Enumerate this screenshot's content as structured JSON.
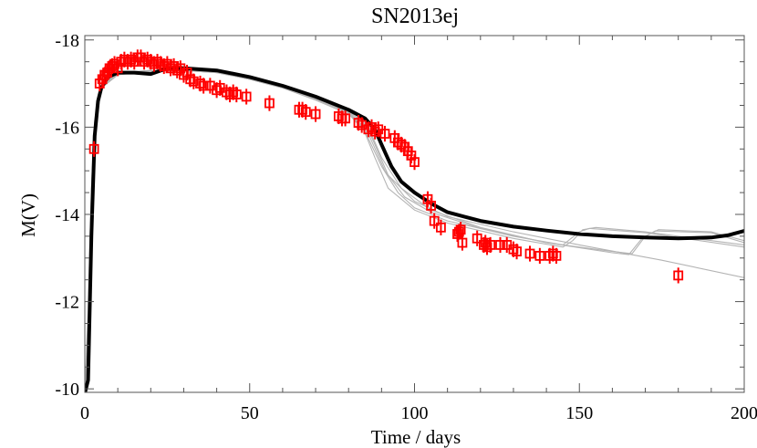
{
  "chart_data": {
    "type": "scatter",
    "title": "SN2013ej",
    "xlabel": "Time / days",
    "ylabel": "M(V)",
    "xlim": [
      0,
      200
    ],
    "ylim": [
      -9.92,
      -18.1
    ],
    "y_inverted": true,
    "grid": false,
    "x_ticks": [
      0,
      50,
      100,
      150,
      200
    ],
    "x_tick_labels": [
      "0",
      "50",
      "100",
      "150",
      "200"
    ],
    "x_minor_step": 10,
    "y_ticks": [
      -10,
      -12,
      -14,
      -16,
      -18
    ],
    "y_tick_labels": [
      "-10",
      "-12",
      "-14",
      "-16",
      "-18"
    ],
    "y_minor_step": 0.5,
    "colors": {
      "observed": "#ff0000",
      "best_model": "#000000",
      "models": "#b4b4b4"
    },
    "observed": {
      "marker": "open-square",
      "error": 0.18,
      "points": [
        [
          2.8,
          -15.5
        ],
        [
          4.5,
          -17.0
        ],
        [
          5.3,
          -17.1
        ],
        [
          6,
          -17.2
        ],
        [
          6.8,
          -17.25
        ],
        [
          7.5,
          -17.35
        ],
        [
          8.3,
          -17.4
        ],
        [
          9,
          -17.45
        ],
        [
          10,
          -17.35
        ],
        [
          11,
          -17.5
        ],
        [
          12,
          -17.55
        ],
        [
          13,
          -17.5
        ],
        [
          14,
          -17.55
        ],
        [
          15,
          -17.5
        ],
        [
          16,
          -17.6
        ],
        [
          17,
          -17.6
        ],
        [
          18,
          -17.5
        ],
        [
          19,
          -17.55
        ],
        [
          20,
          -17.5
        ],
        [
          21,
          -17.45
        ],
        [
          22,
          -17.5
        ],
        [
          23,
          -17.45
        ],
        [
          24,
          -17.4
        ],
        [
          25,
          -17.45
        ],
        [
          26,
          -17.35
        ],
        [
          27,
          -17.4
        ],
        [
          28,
          -17.3
        ],
        [
          29,
          -17.35
        ],
        [
          30,
          -17.2
        ],
        [
          31,
          -17.25
        ],
        [
          32,
          -17.1
        ],
        [
          33,
          -17.05
        ],
        [
          35,
          -17.0
        ],
        [
          36,
          -16.95
        ],
        [
          38,
          -16.95
        ],
        [
          40,
          -16.85
        ],
        [
          41,
          -16.9
        ],
        [
          43,
          -16.8
        ],
        [
          44,
          -16.75
        ],
        [
          45,
          -16.8
        ],
        [
          46,
          -16.75
        ],
        [
          49,
          -16.7
        ],
        [
          56,
          -16.55
        ],
        [
          65,
          -16.4
        ],
        [
          66,
          -16.4
        ],
        [
          67,
          -16.35
        ],
        [
          70,
          -16.3
        ],
        [
          77,
          -16.25
        ],
        [
          78,
          -16.2
        ],
        [
          79,
          -16.2
        ],
        [
          83,
          -16.1
        ],
        [
          84,
          -16.05
        ],
        [
          86,
          -15.95
        ],
        [
          87,
          -16.0
        ],
        [
          88,
          -15.9
        ],
        [
          89,
          -15.95
        ],
        [
          91,
          -15.85
        ],
        [
          94,
          -15.75
        ],
        [
          95,
          -15.65
        ],
        [
          96,
          -15.6
        ],
        [
          97,
          -15.55
        ],
        [
          98,
          -15.45
        ],
        [
          99,
          -15.35
        ],
        [
          100,
          -15.2
        ],
        [
          104,
          -14.35
        ],
        [
          105,
          -14.2
        ],
        [
          106,
          -13.85
        ],
        [
          108,
          -13.7
        ],
        [
          113,
          -13.55
        ],
        [
          113.5,
          -13.6
        ],
        [
          114,
          -13.65
        ],
        [
          114.5,
          -13.35
        ],
        [
          119,
          -13.45
        ],
        [
          121,
          -13.3
        ],
        [
          121.5,
          -13.35
        ],
        [
          122,
          -13.25
        ],
        [
          123,
          -13.3
        ],
        [
          126,
          -13.3
        ],
        [
          128,
          -13.3
        ],
        [
          130,
          -13.2
        ],
        [
          131,
          -13.15
        ],
        [
          135,
          -13.1
        ],
        [
          138,
          -13.05
        ],
        [
          141,
          -13.05
        ],
        [
          142,
          -13.1
        ],
        [
          143,
          -13.05
        ],
        [
          180,
          -12.6
        ]
      ]
    },
    "best_model": [
      [
        0,
        -9.9
      ],
      [
        1,
        -10.2
      ],
      [
        2,
        -13.5
      ],
      [
        3,
        -15.8
      ],
      [
        4,
        -16.6
      ],
      [
        5,
        -16.9
      ],
      [
        7,
        -17.15
      ],
      [
        10,
        -17.25
      ],
      [
        15,
        -17.25
      ],
      [
        20,
        -17.22
      ],
      [
        25,
        -17.35
      ],
      [
        30,
        -17.35
      ],
      [
        40,
        -17.3
      ],
      [
        50,
        -17.15
      ],
      [
        60,
        -16.95
      ],
      [
        70,
        -16.7
      ],
      [
        80,
        -16.4
      ],
      [
        85,
        -16.2
      ],
      [
        88,
        -15.95
      ],
      [
        90,
        -15.6
      ],
      [
        93,
        -15.1
      ],
      [
        96,
        -14.75
      ],
      [
        100,
        -14.5
      ],
      [
        105,
        -14.25
      ],
      [
        110,
        -14.05
      ],
      [
        120,
        -13.85
      ],
      [
        130,
        -13.72
      ],
      [
        140,
        -13.63
      ],
      [
        150,
        -13.55
      ],
      [
        160,
        -13.5
      ],
      [
        170,
        -13.47
      ],
      [
        180,
        -13.45
      ],
      [
        190,
        -13.47
      ],
      [
        195,
        -13.52
      ],
      [
        200,
        -13.62
      ]
    ],
    "models": [
      [
        [
          0,
          -9.9
        ],
        [
          1,
          -11
        ],
        [
          2,
          -14.2
        ],
        [
          3,
          -16.0
        ],
        [
          5,
          -16.9
        ],
        [
          10,
          -17.2
        ],
        [
          20,
          -17.3
        ],
        [
          30,
          -17.3
        ],
        [
          40,
          -17.25
        ],
        [
          50,
          -17.1
        ],
        [
          60,
          -16.9
        ],
        [
          70,
          -16.65
        ],
        [
          80,
          -16.35
        ],
        [
          85,
          -16.1
        ],
        [
          88,
          -15.6
        ],
        [
          92,
          -14.9
        ],
        [
          100,
          -14.3
        ],
        [
          110,
          -13.95
        ],
        [
          130,
          -13.6
        ],
        [
          150,
          -13.3
        ],
        [
          175,
          -12.95
        ],
        [
          200,
          -12.55
        ]
      ],
      [
        [
          0,
          -9.9
        ],
        [
          1,
          -11.5
        ],
        [
          2,
          -14.5
        ],
        [
          3,
          -16.1
        ],
        [
          5,
          -16.95
        ],
        [
          10,
          -17.25
        ],
        [
          20,
          -17.3
        ],
        [
          30,
          -17.3
        ],
        [
          40,
          -17.25
        ],
        [
          50,
          -17.1
        ],
        [
          60,
          -16.9
        ],
        [
          70,
          -16.65
        ],
        [
          80,
          -16.35
        ],
        [
          84,
          -16.05
        ],
        [
          88,
          -15.3
        ],
        [
          92,
          -14.6
        ],
        [
          100,
          -14.1
        ],
        [
          110,
          -13.8
        ],
        [
          130,
          -13.45
        ],
        [
          145,
          -13.25
        ],
        [
          148,
          -13.4
        ],
        [
          151,
          -13.65
        ],
        [
          155,
          -13.7
        ],
        [
          170,
          -13.6
        ],
        [
          200,
          -13.3
        ]
      ],
      [
        [
          0,
          -9.9
        ],
        [
          1,
          -11.2
        ],
        [
          2,
          -14.3
        ],
        [
          3,
          -16.05
        ],
        [
          5,
          -16.9
        ],
        [
          10,
          -17.2
        ],
        [
          20,
          -17.28
        ],
        [
          30,
          -17.3
        ],
        [
          40,
          -17.25
        ],
        [
          50,
          -17.1
        ],
        [
          60,
          -16.9
        ],
        [
          70,
          -16.62
        ],
        [
          80,
          -16.3
        ],
        [
          85,
          -15.9
        ],
        [
          90,
          -15.1
        ],
        [
          95,
          -14.5
        ],
        [
          100,
          -14.15
        ],
        [
          110,
          -13.85
        ],
        [
          130,
          -13.5
        ],
        [
          145,
          -13.3
        ],
        [
          150,
          -13.6
        ],
        [
          153,
          -13.68
        ],
        [
          170,
          -13.58
        ],
        [
          200,
          -13.25
        ]
      ],
      [
        [
          0,
          -9.9
        ],
        [
          1,
          -11.8
        ],
        [
          2,
          -14.6
        ],
        [
          3,
          -16.15
        ],
        [
          5,
          -16.95
        ],
        [
          10,
          -17.25
        ],
        [
          20,
          -17.3
        ],
        [
          30,
          -17.32
        ],
        [
          40,
          -17.27
        ],
        [
          50,
          -17.12
        ],
        [
          60,
          -16.92
        ],
        [
          70,
          -16.67
        ],
        [
          80,
          -16.37
        ],
        [
          86,
          -16.0
        ],
        [
          90,
          -15.3
        ],
        [
          96,
          -14.6
        ],
        [
          105,
          -14.1
        ],
        [
          120,
          -13.7
        ],
        [
          140,
          -13.35
        ],
        [
          160,
          -13.15
        ],
        [
          166,
          -13.1
        ],
        [
          170,
          -13.5
        ],
        [
          174,
          -13.65
        ],
        [
          190,
          -13.6
        ],
        [
          200,
          -13.4
        ]
      ],
      [
        [
          0,
          -9.9
        ],
        [
          1,
          -11.4
        ],
        [
          2,
          -14.4
        ],
        [
          3,
          -16.1
        ],
        [
          5,
          -16.92
        ],
        [
          10,
          -17.22
        ],
        [
          20,
          -17.28
        ],
        [
          30,
          -17.3
        ],
        [
          40,
          -17.26
        ],
        [
          50,
          -17.1
        ],
        [
          60,
          -16.9
        ],
        [
          70,
          -16.64
        ],
        [
          80,
          -16.33
        ],
        [
          86,
          -15.85
        ],
        [
          91,
          -15.0
        ],
        [
          97,
          -14.4
        ],
        [
          105,
          -14.05
        ],
        [
          120,
          -13.68
        ],
        [
          140,
          -13.35
        ],
        [
          160,
          -13.12
        ],
        [
          165,
          -13.08
        ],
        [
          169,
          -13.45
        ],
        [
          173,
          -13.62
        ],
        [
          190,
          -13.58
        ],
        [
          200,
          -13.35
        ]
      ]
    ]
  }
}
